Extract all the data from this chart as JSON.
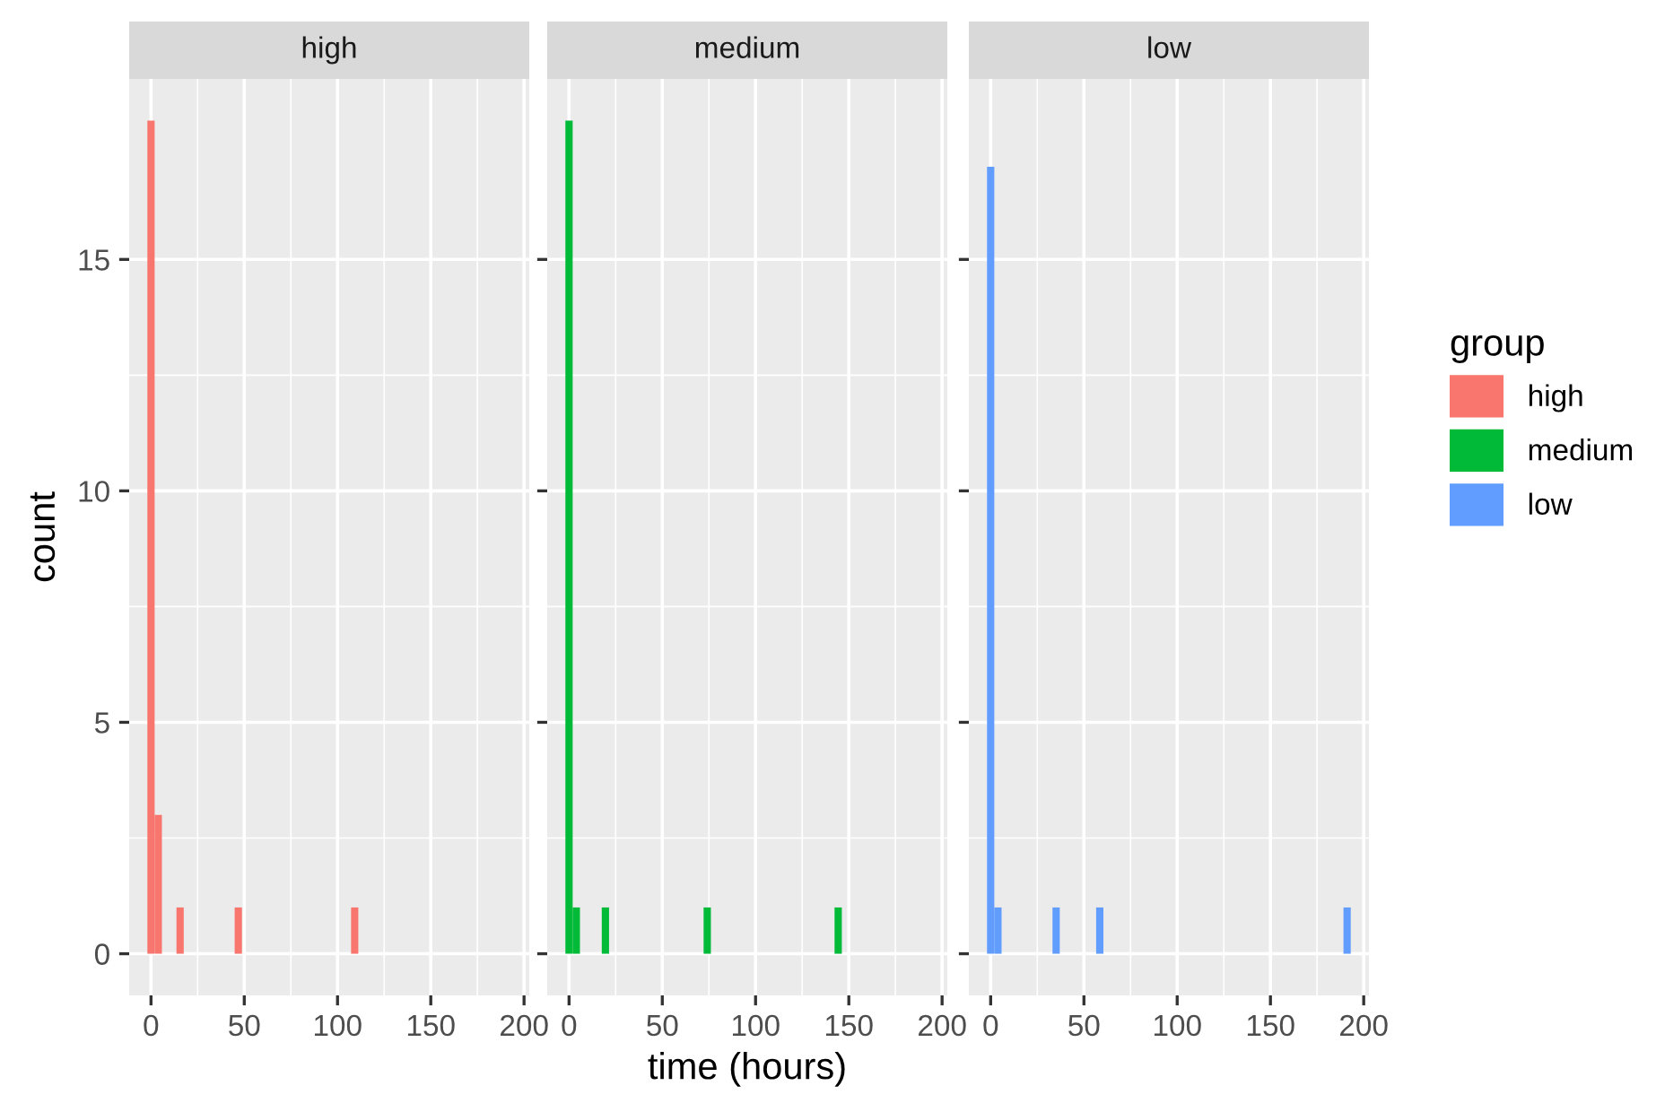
{
  "chart_data": [
    {
      "type": "histogram",
      "title": "high",
      "ylabel": "count",
      "grid": true,
      "xlim": [
        -11.7,
        202.8
      ],
      "ylim": [
        -0.9,
        18.9
      ],
      "xticks": [
        0,
        50,
        100,
        150,
        200
      ],
      "yticks": [
        0,
        5,
        10,
        15
      ],
      "bins": [
        -1.95,
        1.95,
        5.85,
        9.75,
        13.65,
        17.55,
        21.45,
        25.35,
        29.25,
        33.15,
        37.05,
        40.95,
        44.85,
        48.75,
        52.65,
        56.55,
        60.45,
        64.35,
        68.25,
        72.15,
        76.05,
        79.95,
        83.85,
        87.75,
        91.65,
        95.55,
        99.45,
        103.35,
        107.25,
        111.15,
        115.05,
        118.95,
        122.85,
        126.75,
        130.65,
        134.55,
        138.45,
        142.35,
        146.25,
        150.15,
        154.05,
        157.95,
        161.85,
        165.75,
        169.65,
        173.55,
        177.45,
        181.35,
        185.25,
        189.15,
        193.05
      ],
      "series": [
        {
          "name": "high",
          "color": "#f8766d",
          "values": [
            18,
            3,
            0,
            0,
            1,
            0,
            0,
            0,
            0,
            0,
            0,
            0,
            1,
            0,
            0,
            0,
            0,
            0,
            0,
            0,
            0,
            0,
            0,
            0,
            0,
            0,
            0,
            0,
            1,
            0,
            0,
            0,
            0,
            0,
            0,
            0,
            0,
            0,
            0,
            0,
            0,
            0,
            0,
            0,
            0,
            0,
            0,
            0,
            0,
            0
          ]
        }
      ]
    },
    {
      "type": "histogram",
      "title": "medium",
      "xlabel": "time (hours)",
      "grid": true,
      "tick_labels": "x",
      "xlim": [
        -11.7,
        202.8
      ],
      "ylim": [
        -0.9,
        18.9
      ],
      "xticks": [
        0,
        50,
        100,
        150,
        200
      ],
      "yticks": [
        0,
        5,
        10,
        15
      ],
      "bins": [
        -1.95,
        1.95,
        5.85,
        9.75,
        13.65,
        17.55,
        21.45,
        25.35,
        29.25,
        33.15,
        37.05,
        40.95,
        44.85,
        48.75,
        52.65,
        56.55,
        60.45,
        64.35,
        68.25,
        72.15,
        76.05,
        79.95,
        83.85,
        87.75,
        91.65,
        95.55,
        99.45,
        103.35,
        107.25,
        111.15,
        115.05,
        118.95,
        122.85,
        126.75,
        130.65,
        134.55,
        138.45,
        142.35,
        146.25,
        150.15,
        154.05,
        157.95,
        161.85,
        165.75,
        169.65,
        173.55,
        177.45,
        181.35,
        185.25,
        189.15,
        193.05
      ],
      "series": [
        {
          "name": "medium",
          "color": "#00ba38",
          "values": [
            18,
            1,
            0,
            0,
            0,
            1,
            0,
            0,
            0,
            0,
            0,
            0,
            0,
            0,
            0,
            0,
            0,
            0,
            0,
            1,
            0,
            0,
            0,
            0,
            0,
            0,
            0,
            0,
            0,
            0,
            0,
            0,
            0,
            0,
            0,
            0,
            0,
            1,
            0,
            0,
            0,
            0,
            0,
            0,
            0,
            0,
            0,
            0,
            0,
            0
          ]
        }
      ]
    },
    {
      "type": "histogram",
      "title": "low",
      "legend_title": "group",
      "legend": "right",
      "grid": true,
      "tick_labels": "x",
      "xlim": [
        -11.7,
        202.8
      ],
      "ylim": [
        -0.9,
        18.9
      ],
      "xticks": [
        0,
        50,
        100,
        150,
        200
      ],
      "yticks": [
        0,
        5,
        10,
        15
      ],
      "bins": [
        -1.95,
        1.95,
        5.85,
        9.75,
        13.65,
        17.55,
        21.45,
        25.35,
        29.25,
        33.15,
        37.05,
        40.95,
        44.85,
        48.75,
        52.65,
        56.55,
        60.45,
        64.35,
        68.25,
        72.15,
        76.05,
        79.95,
        83.85,
        87.75,
        91.65,
        95.55,
        99.45,
        103.35,
        107.25,
        111.15,
        115.05,
        118.95,
        122.85,
        126.75,
        130.65,
        134.55,
        138.45,
        142.35,
        146.25,
        150.15,
        154.05,
        157.95,
        161.85,
        165.75,
        169.65,
        173.55,
        177.45,
        181.35,
        185.25,
        189.15,
        193.05
      ],
      "series": [
        {
          "name": "low",
          "color": "#619cff",
          "values": [
            17,
            1,
            0,
            0,
            0,
            0,
            0,
            0,
            0,
            1,
            0,
            0,
            0,
            0,
            0,
            1,
            0,
            0,
            0,
            0,
            0,
            0,
            0,
            0,
            0,
            0,
            0,
            0,
            0,
            0,
            0,
            0,
            0,
            0,
            0,
            0,
            0,
            0,
            0,
            0,
            0,
            0,
            0,
            0,
            0,
            0,
            0,
            0,
            0,
            1
          ]
        }
      ]
    }
  ]
}
